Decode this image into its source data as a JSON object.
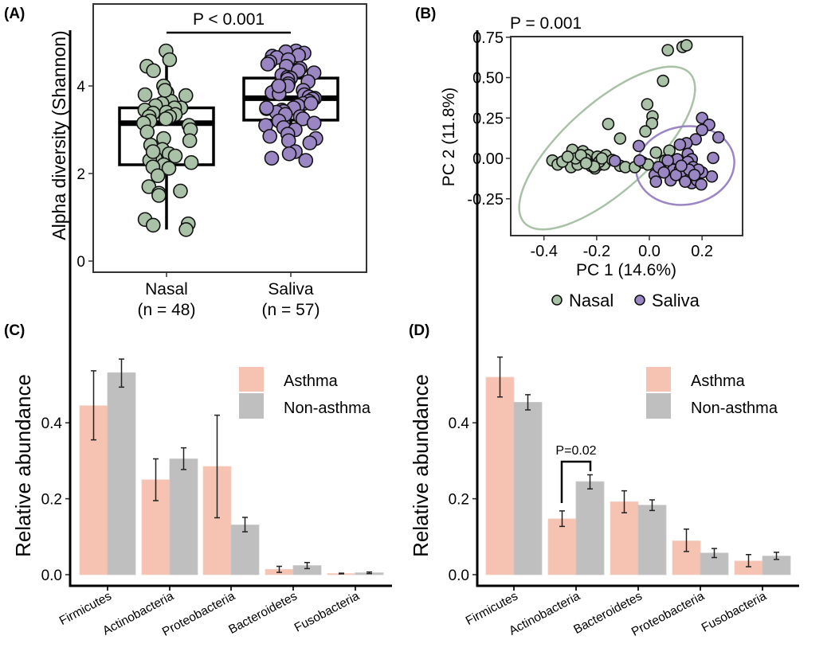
{
  "colors": {
    "nasal": "#a9c1a6",
    "saliva": "#9b86c4",
    "asthma": "#f6c2b2",
    "non_asthma": "#bfbfbf"
  },
  "chart_data": [
    {
      "panel": "(A)",
      "type": "box",
      "ylabel": "Alpha diversity (Shannon)",
      "yticks": [
        0,
        2,
        4
      ],
      "ylim": [
        -0.25,
        5.85
      ],
      "annotation": "P < 0.001",
      "categories": [
        "Nasal",
        "Saliva"
      ],
      "category_n": [
        "(n = 48)",
        "(n = 57)"
      ],
      "boxes": [
        {
          "name": "Nasal",
          "whisker_low": 0.72,
          "q1": 2.2,
          "median": 3.15,
          "q3": 3.5,
          "whisker_high": 4.75
        },
        {
          "name": "Saliva",
          "whisker_low": 2.3,
          "q1": 3.22,
          "median": 3.72,
          "q3": 4.18,
          "whisker_high": 4.75
        }
      ],
      "points": {
        "Nasal": [
          4.8,
          4.6,
          4.45,
          4.35,
          4.0,
          3.85,
          3.8,
          3.78,
          3.65,
          3.6,
          3.55,
          3.5,
          3.5,
          3.45,
          3.4,
          3.38,
          3.35,
          3.3,
          3.3,
          3.25,
          3.2,
          3.15,
          3.1,
          3.0,
          2.95,
          2.8,
          2.75,
          2.65,
          2.55,
          2.45,
          2.4,
          2.35,
          2.3,
          2.25,
          2.2,
          2.15,
          2.12,
          1.95,
          1.7,
          1.6,
          1.55,
          1.5,
          0.95,
          0.85,
          0.82,
          0.72,
          3.9,
          2.5
        ],
        "Saliva": [
          4.8,
          4.78,
          4.75,
          4.7,
          4.68,
          4.65,
          4.6,
          4.55,
          4.5,
          4.45,
          4.4,
          4.35,
          4.3,
          4.25,
          4.2,
          4.18,
          4.15,
          4.1,
          4.05,
          4.0,
          3.98,
          3.95,
          3.9,
          3.85,
          3.82,
          3.8,
          3.75,
          3.72,
          3.7,
          3.65,
          3.6,
          3.55,
          3.5,
          3.48,
          3.45,
          3.42,
          3.4,
          3.35,
          3.3,
          3.25,
          3.2,
          3.15,
          3.1,
          3.05,
          3.0,
          2.9,
          2.85,
          2.8,
          2.75,
          2.7,
          2.5,
          2.45,
          2.35,
          2.3,
          3.6,
          4.0,
          3.5
        ]
      }
    },
    {
      "panel": "(B)",
      "type": "scatter",
      "annotation": "P = 0.001",
      "xlabel": "PC 1 (14.6%)",
      "ylabel": "PC 2 (11.8%)",
      "xticks": [
        "-0.4",
        "-0.2",
        "0.0",
        "0.2"
      ],
      "yticks": [
        "0.75",
        "0.50",
        "0.25",
        "0.00",
        "-0.25"
      ],
      "xlim": [
        -0.53,
        0.35
      ],
      "ylim": [
        -0.47,
        0.76
      ],
      "legend": {
        "position": "bottom",
        "entries": [
          "Nasal",
          "Saliva"
        ]
      },
      "series": [
        {
          "name": "Nasal",
          "points": [
            [
              0.07,
              0.67
            ],
            [
              0.126,
              0.69
            ],
            [
              0.141,
              0.7
            ],
            [
              0.052,
              0.48
            ],
            [
              -0.008,
              0.335
            ],
            [
              0.012,
              0.26
            ],
            [
              0.01,
              0.217
            ],
            [
              -0.015,
              0.167
            ],
            [
              -0.156,
              0.213
            ],
            [
              -0.111,
              0.123
            ],
            [
              -0.292,
              0.053
            ],
            [
              -0.252,
              0.044
            ],
            [
              -0.232,
              0.02
            ],
            [
              -0.197,
              0.011
            ],
            [
              -0.166,
              0.02
            ],
            [
              -0.368,
              -0.013
            ],
            [
              -0.348,
              -0.038
            ],
            [
              -0.312,
              -0.013
            ],
            [
              -0.297,
              -0.054
            ],
            [
              -0.272,
              -0.038
            ],
            [
              -0.242,
              -0.005
            ],
            [
              -0.222,
              -0.046
            ],
            [
              -0.207,
              -0.062
            ],
            [
              -0.187,
              -0.038
            ],
            [
              -0.171,
              -0.038
            ],
            [
              -0.111,
              -0.046
            ],
            [
              -0.091,
              -0.054
            ],
            [
              -0.055,
              -0.054
            ],
            [
              -0.025,
              -0.025
            ],
            [
              -0.005,
              -0.038
            ],
            [
              0.025,
              0.036
            ],
            [
              0.06,
              -0.013
            ],
            [
              0.076,
              0.048
            ],
            [
              -0.28,
              0.0
            ],
            [
              -0.19,
              -0.02
            ],
            [
              -0.33,
              -0.02
            ],
            [
              -0.14,
              -0.01
            ],
            [
              -0.26,
              0.02
            ],
            [
              -0.21,
              -0.05
            ],
            [
              -0.31,
              0.01
            ],
            [
              -0.18,
              0.0
            ],
            [
              -0.24,
              -0.03
            ]
          ]
        },
        {
          "name": "Saliva",
          "points": [
            [
              -0.04,
              0.077
            ],
            [
              -0.131,
              -0.016
            ],
            [
              -0.037,
              -0.013
            ],
            [
              0.2,
              0.25
            ],
            [
              0.227,
              0.208
            ],
            [
              0.2,
              0.176
            ],
            [
              0.176,
              0.118
            ],
            [
              0.141,
              0.094
            ],
            [
              0.116,
              0.085
            ],
            [
              0.262,
              0.13
            ],
            [
              0.242,
              0.003
            ],
            [
              0.237,
              -0.112
            ],
            [
              0.02,
              -0.103
            ],
            [
              0.025,
              -0.144
            ],
            [
              0.081,
              -0.136
            ],
            [
              0.091,
              -0.07
            ],
            [
              0.106,
              -0.005
            ],
            [
              0.146,
              0.028
            ],
            [
              0.161,
              -0.005
            ],
            [
              0.146,
              -0.021
            ],
            [
              0.116,
              -0.07
            ],
            [
              0.126,
              -0.112
            ],
            [
              0.156,
              -0.12
            ],
            [
              0.161,
              -0.153
            ],
            [
              0.181,
              -0.136
            ],
            [
              0.197,
              -0.161
            ],
            [
              0.176,
              -0.095
            ],
            [
              0.2,
              -0.087
            ],
            [
              0.136,
              -0.144
            ],
            [
              0.07,
              -0.013
            ],
            [
              0.035,
              -0.054
            ],
            [
              0.166,
              -0.054
            ],
            [
              0.101,
              -0.103
            ],
            [
              0.186,
              -0.07
            ],
            [
              0.055,
              -0.087
            ],
            [
              0.151,
              -0.07
            ],
            [
              0.171,
              -0.103
            ],
            [
              0.121,
              -0.046
            ]
          ]
        }
      ]
    },
    {
      "panel": "(C)",
      "type": "bar",
      "ylabel": "Relative abundance",
      "yticks": [
        "0.0",
        "0.2",
        "0.4"
      ],
      "ylim": [
        -0.03,
        0.6
      ],
      "legend": {
        "position": "top-right",
        "entries": [
          "Asthma",
          "Non-asthma"
        ]
      },
      "categories": [
        "Firmicutes",
        "Actinobacteria",
        "Proteobacteria",
        "Bacteroidetes",
        "Fusobacteria"
      ],
      "series": [
        {
          "name": "Asthma",
          "values": [
            0.445,
            0.25,
            0.285,
            0.014,
            0.003
          ],
          "err_low": [
            0.355,
            0.195,
            0.15,
            0.006,
            0.002
          ],
          "err_high": [
            0.537,
            0.305,
            0.42,
            0.022,
            0.004
          ]
        },
        {
          "name": "Non-asthma",
          "values": [
            0.532,
            0.305,
            0.131,
            0.024,
            0.005
          ],
          "err_low": [
            0.494,
            0.277,
            0.113,
            0.016,
            0.003
          ],
          "err_high": [
            0.568,
            0.334,
            0.151,
            0.032,
            0.007
          ]
        }
      ]
    },
    {
      "panel": "(D)",
      "type": "bar",
      "ylabel": "Relative abundance",
      "yticks": [
        "0.0",
        "0.2",
        "0.4"
      ],
      "ylim": [
        -0.03,
        0.6
      ],
      "annotation": "P=0.02",
      "legend": {
        "position": "top-right",
        "entries": [
          "Asthma",
          "Non-asthma"
        ]
      },
      "categories": [
        "Firmicutes",
        "Actinobacteria",
        "Bacteroidetes",
        "Proteobacteria",
        "Fusobacteria"
      ],
      "series": [
        {
          "name": "Asthma",
          "values": [
            0.52,
            0.147,
            0.192,
            0.089,
            0.036
          ],
          "err_low": [
            0.468,
            0.127,
            0.163,
            0.061,
            0.021
          ],
          "err_high": [
            0.573,
            0.168,
            0.221,
            0.12,
            0.053
          ]
        },
        {
          "name": "Non-asthma",
          "values": [
            0.454,
            0.245,
            0.183,
            0.057,
            0.049
          ],
          "err_low": [
            0.434,
            0.226,
            0.169,
            0.045,
            0.04
          ],
          "err_high": [
            0.474,
            0.263,
            0.197,
            0.069,
            0.059
          ]
        }
      ]
    }
  ]
}
